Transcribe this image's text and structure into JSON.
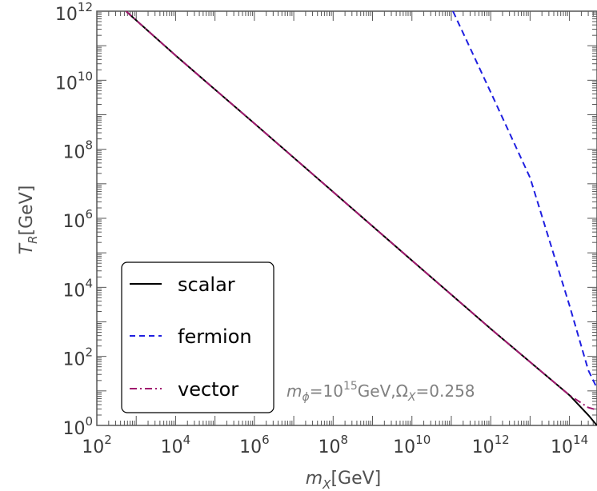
{
  "chart_data": {
    "type": "line",
    "x_scale": "log",
    "y_scale": "log",
    "xlim": [
      100.0,
      500000000000000.0
    ],
    "ylim": [
      1.0,
      1000000000000.0
    ],
    "xlabel": {
      "symbol": "m",
      "subscript": "X",
      "unit": "[GeV]"
    },
    "ylabel": {
      "symbol": "T",
      "subscript": "R",
      "unit": "[GeV]"
    },
    "x_ticks": [
      {
        "value": 100.0,
        "base": "10",
        "exp": "2"
      },
      {
        "value": 10000.0,
        "base": "10",
        "exp": "4"
      },
      {
        "value": 1000000.0,
        "base": "10",
        "exp": "6"
      },
      {
        "value": 100000000.0,
        "base": "10",
        "exp": "8"
      },
      {
        "value": 10000000000.0,
        "base": "10",
        "exp": "10"
      },
      {
        "value": 1000000000000.0,
        "base": "10",
        "exp": "12"
      },
      {
        "value": 100000000000000.0,
        "base": "10",
        "exp": "14"
      }
    ],
    "y_ticks": [
      {
        "value": 1.0,
        "base": "10",
        "exp": "0"
      },
      {
        "value": 100.0,
        "base": "10",
        "exp": "2"
      },
      {
        "value": 10000.0,
        "base": "10",
        "exp": "4"
      },
      {
        "value": 1000000.0,
        "base": "10",
        "exp": "6"
      },
      {
        "value": 100000000.0,
        "base": "10",
        "exp": "8"
      },
      {
        "value": 10000000000.0,
        "base": "10",
        "exp": "10"
      },
      {
        "value": 1000000000000.0,
        "base": "10",
        "exp": "12"
      }
    ],
    "series": [
      {
        "name": "scalar",
        "color": "#000000",
        "dash": "solid",
        "points": [
          [
            550.0,
            1000000000000.0
          ],
          [
            10000.0,
            52000000000.0
          ],
          [
            1000000.0,
            560000000.0
          ],
          [
            100000000.0,
            5800000.0
          ],
          [
            10000000000.0,
            60000.0
          ],
          [
            1000000000000.0,
            630.0
          ],
          [
            100000000000000.0,
            7.5
          ],
          [
            300000000000000.0,
            2.0
          ],
          [
            500000000000000.0,
            1.0
          ]
        ]
      },
      {
        "name": "fermion",
        "color": "#1f1fe0",
        "dash": "dashed",
        "points": [
          [
            110000000000.0,
            1000000000000.0
          ],
          [
            1000000000000.0,
            4500000000.0
          ],
          [
            10000000000000.0,
            15000000.0
          ],
          [
            100000000000000.0,
            3000.0
          ],
          [
            300000000000000.0,
            40.0
          ],
          [
            500000000000000.0,
            12.0
          ]
        ]
      },
      {
        "name": "vector",
        "color": "#a0186e",
        "dash": "dashdot",
        "points": [
          [
            550.0,
            1000000000000.0
          ],
          [
            10000.0,
            52000000000.0
          ],
          [
            1000000.0,
            560000000.0
          ],
          [
            100000000.0,
            5800000.0
          ],
          [
            10000000000.0,
            60000.0
          ],
          [
            1000000000000.0,
            630.0
          ],
          [
            100000000000000.0,
            7.5
          ],
          [
            300000000000000.0,
            3.3
          ],
          [
            500000000000000.0,
            2.8
          ]
        ]
      }
    ],
    "legend": {
      "placement": "bottom-left",
      "entries": [
        "scalar",
        "fermion",
        "vector"
      ]
    },
    "annotation": {
      "m_symbol": "m",
      "m_sub": "ϕ",
      "eq1": "=10",
      "exp": "15",
      "unit": "GeV,",
      "omega": "Ω",
      "omega_sub": "X",
      "eq2": "=0.258"
    },
    "grid": false
  }
}
